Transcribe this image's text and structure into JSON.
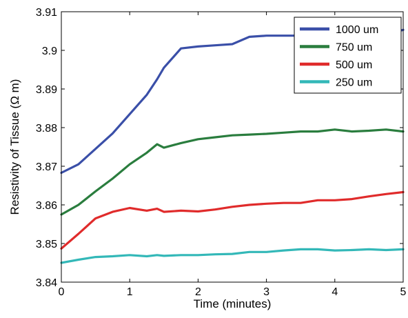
{
  "chart_data": {
    "type": "line",
    "title": "",
    "xlabel": "Time (minutes)",
    "ylabel": "Resistivity of Tissue (Ω m)",
    "xlim": [
      0,
      5
    ],
    "ylim": [
      3.84,
      3.91
    ],
    "xticks": [
      0,
      1,
      2,
      3,
      4,
      5
    ],
    "yticks": [
      3.84,
      3.85,
      3.86,
      3.87,
      3.88,
      3.89,
      3.9,
      3.91
    ],
    "xtick_labels": [
      "0",
      "1",
      "2",
      "3",
      "4",
      "5"
    ],
    "ytick_labels": [
      "3.84",
      "3.85",
      "3.86",
      "3.87",
      "3.88",
      "3.89",
      "3.9",
      "3.91"
    ],
    "grid": false,
    "legend_position": "top-right",
    "x": [
      0,
      0.25,
      0.5,
      0.75,
      1.0,
      1.25,
      1.4,
      1.5,
      1.75,
      2.0,
      2.25,
      2.5,
      2.75,
      3.0,
      3.25,
      3.5,
      3.75,
      4.0,
      4.25,
      4.5,
      4.75,
      5.0
    ],
    "series": [
      {
        "name": "1000 um",
        "color": "#3a4fa8",
        "values": [
          3.8683,
          3.8705,
          3.8745,
          3.8785,
          3.8835,
          3.8885,
          3.8925,
          3.8955,
          3.9005,
          3.901,
          3.9013,
          3.9016,
          3.9035,
          3.9038,
          3.9038,
          3.9038,
          3.9038,
          3.9038,
          3.9038,
          3.9038,
          3.9042,
          3.9053
        ]
      },
      {
        "name": "750 um",
        "color": "#2a7d3e",
        "values": [
          3.8575,
          3.86,
          3.8635,
          3.8668,
          3.8705,
          3.8735,
          3.8757,
          3.8748,
          3.876,
          3.877,
          3.8775,
          3.878,
          3.8782,
          3.8784,
          3.8787,
          3.879,
          3.879,
          3.8795,
          3.879,
          3.8792,
          3.8795,
          3.879
        ]
      },
      {
        "name": "500 um",
        "color": "#e02b2b",
        "values": [
          3.8487,
          3.8525,
          3.8565,
          3.8582,
          3.8592,
          3.8585,
          3.859,
          3.8582,
          3.8585,
          3.8583,
          3.8588,
          3.8595,
          3.86,
          3.8603,
          3.8605,
          3.8605,
          3.8612,
          3.8612,
          3.8615,
          3.8622,
          3.8628,
          3.8633
        ]
      },
      {
        "name": "250 um",
        "color": "#33b8b8",
        "values": [
          3.845,
          3.8458,
          3.8465,
          3.8467,
          3.847,
          3.8467,
          3.847,
          3.8468,
          3.847,
          3.847,
          3.8472,
          3.8473,
          3.8478,
          3.8478,
          3.8482,
          3.8485,
          3.8485,
          3.8482,
          3.8483,
          3.8485,
          3.8483,
          3.8485
        ]
      }
    ]
  }
}
